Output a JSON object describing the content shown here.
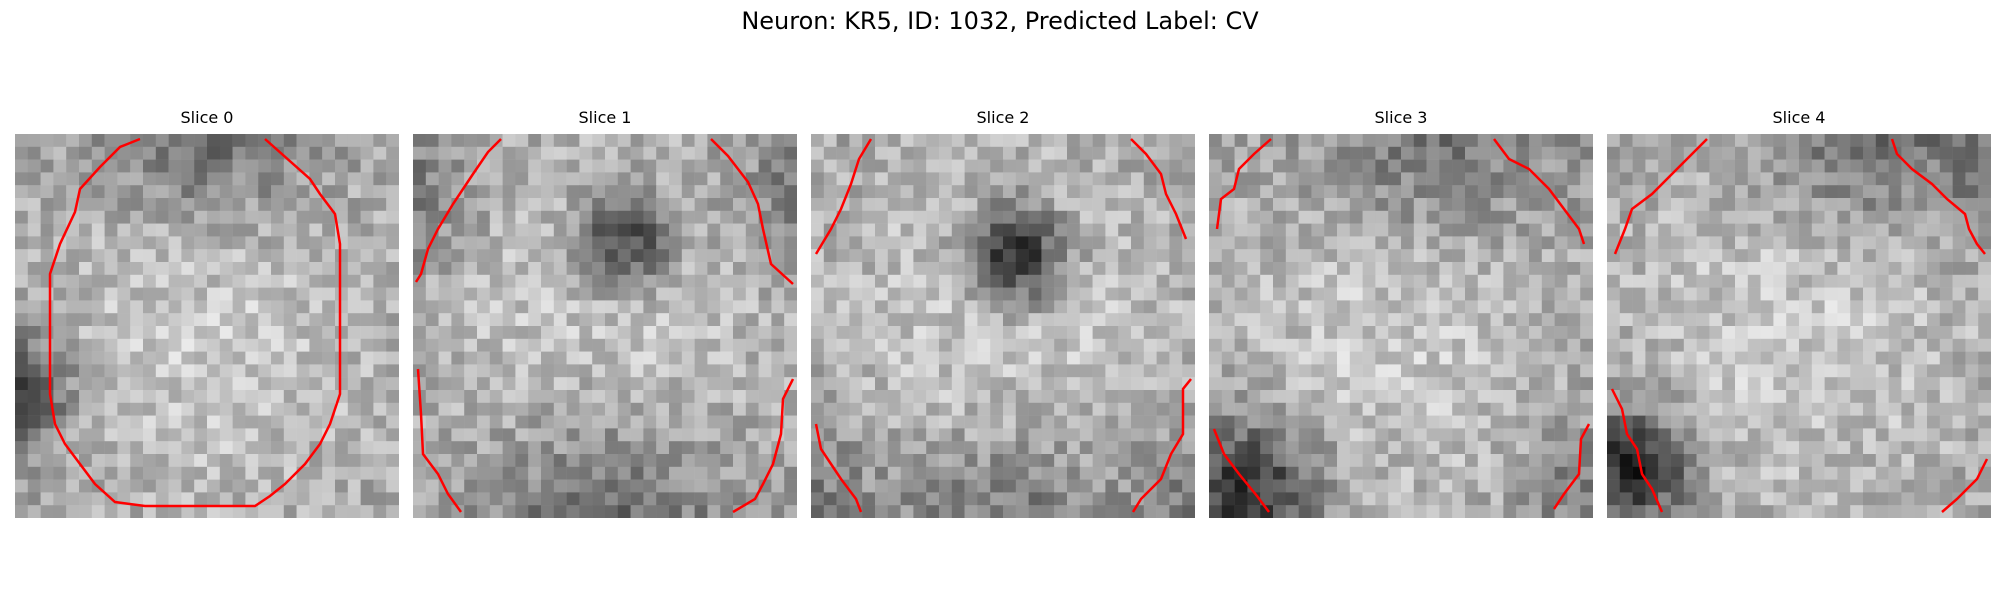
{
  "figure": {
    "title": "Neuron: KR5, ID: 1032, Predicted Label: CV"
  },
  "panels": [
    {
      "title": "Slice 0",
      "contour_color": "#ff0000"
    },
    {
      "title": "Slice 1",
      "contour_color": "#ff0000"
    },
    {
      "title": "Slice 2",
      "contour_color": "#ff0000"
    },
    {
      "title": "Slice 3",
      "contour_color": "#ff0000"
    },
    {
      "title": "Slice 4",
      "contour_color": "#ff0000"
    }
  ]
}
